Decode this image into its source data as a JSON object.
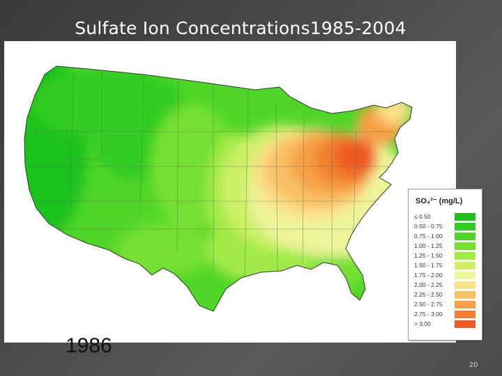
{
  "slide": {
    "title": "Sulfate Ion Concentrations1985-2004",
    "page_number": "20"
  },
  "map": {
    "year_label": "1986",
    "legend": {
      "title": "SO₄²⁻ (mg/L)",
      "entries": [
        {
          "label": "≤ 0.50",
          "color": "#1ec21e"
        },
        {
          "label": "0.50 - 0.75",
          "color": "#30cc22"
        },
        {
          "label": "0.75 - 1.00",
          "color": "#4fd628"
        },
        {
          "label": "1.00 - 1.25",
          "color": "#74e030"
        },
        {
          "label": "1.25 - 1.50",
          "color": "#a2ea46"
        },
        {
          "label": "1.50 - 1.75",
          "color": "#cdf068"
        },
        {
          "label": "1.75 - 2.00",
          "color": "#eef49a"
        },
        {
          "label": "2.00 - 2.25",
          "color": "#fbe08a"
        },
        {
          "label": "2.25 - 2.50",
          "color": "#f9c064"
        },
        {
          "label": "2.50 - 2.75",
          "color": "#f6a045"
        },
        {
          "label": "2.75 - 3.00",
          "color": "#f27e2e"
        },
        {
          "label": "> 3.00",
          "color": "#ee5a22"
        }
      ]
    }
  }
}
